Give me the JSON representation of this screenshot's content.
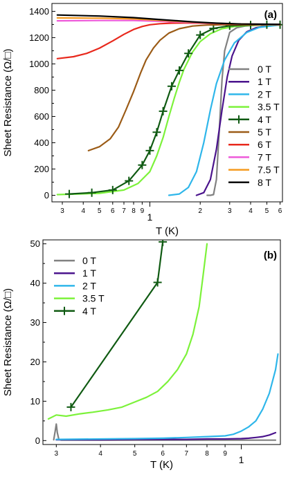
{
  "chart_data": [
    {
      "panel_label": "(a)",
      "type": "line",
      "xlabel": "T (K)",
      "ylabel": "Sheet Resistance (Ω/□)",
      "x_scale": "log",
      "xlim": [
        0.26,
        6.2
      ],
      "ylim": [
        -50,
        1460
      ],
      "x_ticks_major": [
        {
          "value": 1,
          "label": "1"
        }
      ],
      "x_ticks_minor": [
        {
          "value": 0.3,
          "label": "3"
        },
        {
          "value": 0.4,
          "label": "4"
        },
        {
          "value": 0.5,
          "label": "5"
        },
        {
          "value": 0.6,
          "label": "6"
        },
        {
          "value": 0.7,
          "label": "7"
        },
        {
          "value": 0.8,
          "label": "8"
        },
        {
          "value": 0.9,
          "label": "9"
        },
        {
          "value": 2,
          "label": "2"
        },
        {
          "value": 3,
          "label": "3"
        },
        {
          "value": 4,
          "label": "4"
        },
        {
          "value": 5,
          "label": "5"
        },
        {
          "value": 6,
          "label": "6"
        }
      ],
      "y_ticks": [
        0,
        200,
        400,
        600,
        800,
        1000,
        1200,
        1400
      ],
      "legend_position": "right",
      "series": [
        {
          "name": "0 T",
          "color": "#808080",
          "x": [
            2.2,
            2.3,
            2.4,
            2.5,
            2.6,
            2.7,
            2.8,
            3.0,
            3.3,
            3.7,
            4.2,
            5.0,
            6.0
          ],
          "y": [
            0,
            0,
            5,
            120,
            500,
            880,
            1100,
            1240,
            1275,
            1288,
            1294,
            1297,
            1298
          ]
        },
        {
          "name": "1 T",
          "color": "#4a138c",
          "x": [
            1.9,
            2.1,
            2.3,
            2.5,
            2.7,
            2.9,
            3.1,
            3.4,
            3.8,
            4.3,
            5.0,
            6.0
          ],
          "y": [
            0,
            20,
            120,
            350,
            650,
            900,
            1060,
            1180,
            1245,
            1275,
            1290,
            1297
          ]
        },
        {
          "name": "2 T",
          "color": "#2eb6ea",
          "x": [
            1.3,
            1.5,
            1.7,
            1.9,
            2.1,
            2.3,
            2.5,
            2.8,
            3.2,
            3.8,
            4.5,
            6.0
          ],
          "y": [
            0,
            10,
            60,
            180,
            400,
            650,
            850,
            1030,
            1160,
            1240,
            1278,
            1297
          ]
        },
        {
          "name": "3.5 T",
          "color": "#7cf23a",
          "x": [
            0.28,
            0.5,
            0.7,
            0.85,
            1.0,
            1.1,
            1.2,
            1.3,
            1.4,
            1.5,
            1.6,
            1.8,
            2.0,
            2.3,
            2.7,
            3.2,
            4.0,
            5.0,
            6.0
          ],
          "y": [
            5,
            15,
            40,
            90,
            180,
            300,
            440,
            600,
            740,
            860,
            960,
            1090,
            1170,
            1230,
            1268,
            1285,
            1294,
            1297,
            1298
          ]
        },
        {
          "name": "4 T",
          "color": "#0f5a12",
          "markers": true,
          "x": [
            0.33,
            0.45,
            0.6,
            0.75,
            0.9,
            1.0,
            1.1,
            1.2,
            1.35,
            1.5,
            1.7,
            2.0,
            2.4,
            3.0,
            4.0,
            5.0,
            6.0
          ],
          "y": [
            10,
            20,
            40,
            110,
            230,
            340,
            480,
            640,
            830,
            950,
            1080,
            1220,
            1270,
            1290,
            1296,
            1298,
            1298
          ]
        },
        {
          "name": "5 T",
          "color": "#9b5b16",
          "x": [
            0.43,
            0.5,
            0.58,
            0.65,
            0.72,
            0.8,
            0.88,
            0.95,
            1.05,
            1.15,
            1.3,
            1.5,
            1.8,
            2.2,
            3.0,
            4.0,
            6.0
          ],
          "y": [
            340,
            370,
            430,
            520,
            650,
            790,
            930,
            1030,
            1120,
            1180,
            1235,
            1268,
            1288,
            1296,
            1299,
            1299,
            1299
          ]
        },
        {
          "name": "6 T",
          "color": "#e8281c",
          "x": [
            0.28,
            0.35,
            0.42,
            0.5,
            0.6,
            0.7,
            0.8,
            0.9,
            1.0,
            1.15,
            1.35,
            1.6,
            2.0,
            2.6,
            3.5,
            6.0
          ],
          "y": [
            1040,
            1055,
            1080,
            1120,
            1175,
            1225,
            1262,
            1285,
            1298,
            1306,
            1310,
            1311,
            1310,
            1306,
            1302,
            1299
          ]
        },
        {
          "name": "7 T",
          "color": "#ee59d9",
          "x": [
            0.28,
            0.5,
            0.8,
            1.2,
            1.8,
            2.5,
            3.5,
            6.0
          ],
          "y": [
            1328,
            1330,
            1330,
            1323,
            1315,
            1308,
            1303,
            1300
          ]
        },
        {
          "name": "7.5 T",
          "color": "#f59a1d",
          "x": [
            0.28,
            0.5,
            0.8,
            1.2,
            1.8,
            2.5,
            3.5,
            6.0
          ],
          "y": [
            1350,
            1348,
            1342,
            1330,
            1318,
            1309,
            1303,
            1300
          ]
        },
        {
          "name": "8 T",
          "color": "#000000",
          "x": [
            0.28,
            0.5,
            0.8,
            1.2,
            1.8,
            2.5,
            3.5,
            6.0
          ],
          "y": [
            1372,
            1364,
            1352,
            1336,
            1320,
            1310,
            1304,
            1301
          ]
        }
      ]
    },
    {
      "panel_label": "(b)",
      "type": "line",
      "xlabel": "T (K)",
      "ylabel": "Sheet Resistance (Ω/□)",
      "x_scale": "log",
      "xlim": [
        0.275,
        1.29
      ],
      "ylim": [
        -1,
        51
      ],
      "x_ticks_major": [
        {
          "value": 1,
          "label": "1"
        }
      ],
      "x_ticks_minor": [
        {
          "value": 0.3,
          "label": "3"
        },
        {
          "value": 0.4,
          "label": "4"
        },
        {
          "value": 0.5,
          "label": "5"
        },
        {
          "value": 0.6,
          "label": "6"
        },
        {
          "value": 0.7,
          "label": "7"
        },
        {
          "value": 0.8,
          "label": "8"
        },
        {
          "value": 0.9,
          "label": "9"
        }
      ],
      "y_ticks": [
        0,
        10,
        20,
        30,
        40,
        50
      ],
      "legend_position": "top-left",
      "series": [
        {
          "name": "0 T",
          "color": "#808080",
          "x": [
            0.295,
            0.298,
            0.3,
            0.302,
            0.305,
            0.31,
            0.4,
            0.5,
            0.6,
            0.7,
            0.8,
            0.9,
            1.0,
            1.1,
            1.25
          ],
          "y": [
            0.2,
            2.5,
            4.2,
            2.0,
            0.3,
            0.1,
            0.1,
            0.1,
            0.1,
            0.1,
            0.1,
            0.1,
            0.1,
            0.1,
            0.1
          ]
        },
        {
          "name": "1 T",
          "color": "#4a138c",
          "x": [
            0.3,
            0.4,
            0.5,
            0.6,
            0.7,
            0.8,
            0.9,
            1.0,
            1.05,
            1.1,
            1.15,
            1.2,
            1.25
          ],
          "y": [
            0.2,
            0.2,
            0.3,
            0.3,
            0.3,
            0.4,
            0.4,
            0.5,
            0.6,
            0.8,
            1.0,
            1.4,
            2.0
          ]
        },
        {
          "name": "2 T",
          "color": "#2eb6ea",
          "x": [
            0.3,
            0.4,
            0.5,
            0.6,
            0.7,
            0.8,
            0.9,
            0.95,
            1.0,
            1.05,
            1.1,
            1.15,
            1.2,
            1.25,
            1.27
          ],
          "y": [
            0.3,
            0.4,
            0.5,
            0.6,
            0.8,
            1.0,
            1.2,
            1.6,
            2.4,
            3.5,
            5.0,
            8.0,
            12.0,
            18.0,
            22.0
          ]
        },
        {
          "name": "3.5 T",
          "color": "#7cf23a",
          "x": [
            0.285,
            0.3,
            0.32,
            0.35,
            0.38,
            0.42,
            0.46,
            0.5,
            0.54,
            0.58,
            0.62,
            0.66,
            0.7,
            0.73,
            0.76,
            0.78,
            0.8
          ],
          "y": [
            5.5,
            6.5,
            6.2,
            6.8,
            7.2,
            7.8,
            8.5,
            9.8,
            11.0,
            12.5,
            15.0,
            18.0,
            22.0,
            27.0,
            34.0,
            42.0,
            50.0
          ]
        },
        {
          "name": "4 T",
          "color": "#0f5a12",
          "markers": true,
          "x": [
            0.33,
            0.58,
            0.6
          ],
          "y": [
            8.5,
            40.2,
            50.5
          ]
        }
      ]
    }
  ]
}
